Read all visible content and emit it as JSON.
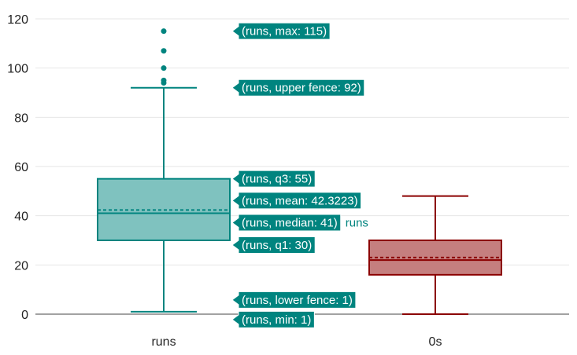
{
  "chart_data": {
    "type": "box",
    "y_axis": {
      "range": [
        0,
        120
      ],
      "ticks": [
        0,
        20,
        40,
        60,
        80,
        100,
        120
      ],
      "grid": true
    },
    "categories": [
      "runs",
      "0s"
    ],
    "series": [
      {
        "name": "runs",
        "category": "runs",
        "color": "#00847f",
        "fill": "#7fc2bf",
        "min": 1,
        "lower_fence": 1,
        "q1": 30,
        "median": 41,
        "mean": 42.3223,
        "q3": 55,
        "upper_fence": 92,
        "max": 115,
        "outliers": [
          94,
          95,
          100,
          107,
          115
        ]
      },
      {
        "name": "0s",
        "category": "0s",
        "color": "#8b0000",
        "fill": "#c57f7f",
        "lower_fence": 0,
        "q1": 16,
        "median": 22,
        "mean": 23,
        "q3": 30,
        "upper_fence": 48,
        "outliers": []
      }
    ],
    "hover": {
      "series": "runs",
      "labels": [
        "(runs, max: 115)",
        "(runs, upper fence: 92)",
        "(runs, q3: 55)",
        "(runs, mean: 42.3223)",
        "(runs, median: 41)",
        "(runs, q1: 30)",
        "(runs, lower fence: 1)",
        "(runs, min: 1)"
      ],
      "trace_name": "runs",
      "color": "#00847f"
    }
  }
}
